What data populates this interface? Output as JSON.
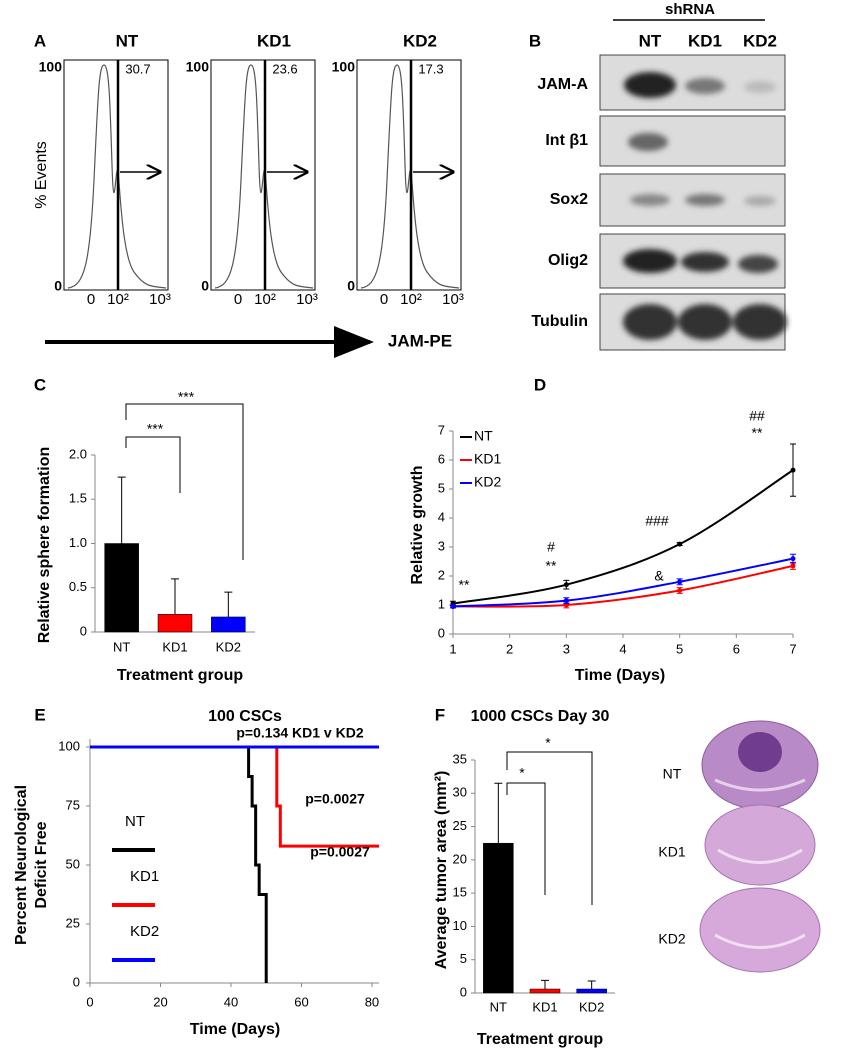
{
  "flow": {
    "panel": "A",
    "y_axis_label": "% Events",
    "x_axis_label": "JAM-PE",
    "yticks": [
      0,
      100
    ],
    "xticks": [
      "0",
      "10²",
      "10³"
    ],
    "samples": [
      {
        "name": "NT",
        "percent": 30.7
      },
      {
        "name": "KD1",
        "percent": 23.6
      },
      {
        "name": "KD2",
        "percent": 17.3
      }
    ]
  },
  "blot": {
    "panel": "B",
    "header": "shRNA",
    "lanes": [
      "NT",
      "KD1",
      "KD2"
    ],
    "proteins": [
      "JAM-A",
      "Int β1",
      "Sox2",
      "Olig2",
      "Tubulin"
    ]
  },
  "chart_data": [
    {
      "type": "bar",
      "panel": "C",
      "y_label": "Relative sphere formation",
      "x_label": "Treatment group",
      "categories": [
        "NT",
        "KD1",
        "KD2"
      ],
      "values": [
        1.0,
        0.2,
        0.17
      ],
      "errors": [
        0.75,
        0.4,
        0.28
      ],
      "colors": [
        "#000000",
        "#ff0000",
        "#0000ff"
      ],
      "ylim": [
        0,
        2
      ],
      "yticks": [
        0,
        0.5,
        {
          "value": 1,
          "label": "1.0"
        },
        1.5,
        {
          "value": 2,
          "label": "2.0"
        }
      ],
      "annotations": [
        "***",
        "***"
      ]
    },
    {
      "type": "line",
      "panel": "D",
      "y_label": "Relative growth",
      "x_label": "Time (Days)",
      "x": [
        1,
        3,
        5,
        7
      ],
      "xlim": [
        1,
        7
      ],
      "xticks": [
        1,
        2,
        3,
        4,
        5,
        6,
        7
      ],
      "ylim": [
        0,
        7
      ],
      "yticks": [
        0,
        1,
        2,
        3,
        4,
        5,
        6,
        7
      ],
      "series": [
        {
          "name": "NT",
          "color": "#000000",
          "values": [
            1.05,
            1.7,
            3.1,
            5.65
          ],
          "errors": [
            0.08,
            0.15,
            0.05,
            0.9
          ]
        },
        {
          "name": "KD1",
          "color": "#ff0000",
          "values": [
            0.95,
            1.0,
            1.5,
            2.35
          ],
          "errors": [
            0.05,
            0.1,
            0.1,
            0.12
          ]
        },
        {
          "name": "KD2",
          "color": "#0000ff",
          "values": [
            0.95,
            1.15,
            1.8,
            2.6
          ],
          "errors": [
            0.05,
            0.1,
            0.1,
            0.15
          ]
        }
      ],
      "annotations": [
        "**",
        "#",
        "**",
        "###",
        "&",
        "##",
        "**"
      ]
    },
    {
      "type": "survival",
      "panel": "E",
      "title": "100 CSCs",
      "y_label": [
        "Percent Neurological",
        "Deficit Free"
      ],
      "x_label": "Time (Days)",
      "xlim": [
        0,
        82
      ],
      "xticks": [
        0,
        20,
        40,
        60,
        80
      ],
      "ylim": [
        0,
        100
      ],
      "yticks": [
        0,
        25,
        50,
        75,
        100
      ],
      "series": [
        {
          "name": "NT",
          "color": "#000000",
          "x": [
            0,
            45,
            46,
            47,
            48,
            50
          ],
          "values": [
            100,
            87.5,
            75,
            50,
            37.5,
            0
          ]
        },
        {
          "name": "KD1",
          "color": "#ff0000",
          "x": [
            0,
            53,
            54,
            82
          ],
          "values": [
            100,
            75,
            58,
            58
          ]
        },
        {
          "name": "KD2",
          "color": "#0000ff",
          "x": [
            0,
            82
          ],
          "values": [
            100,
            100
          ]
        }
      ],
      "annotations": [
        "p=0.134 KD1 v KD2",
        "p=0.0027",
        "p=0.0027"
      ]
    },
    {
      "type": "bar",
      "panel": "F",
      "title": "1000 CSCs Day 30",
      "y_label": "Average tumor area (mm²)",
      "x_label": "Treatment group",
      "categories": [
        "NT",
        "KD1",
        "KD2"
      ],
      "values": [
        22.5,
        0.6,
        0.6
      ],
      "errors": [
        9,
        1.3,
        1.2
      ],
      "colors": [
        "#000000",
        "#ff0000",
        "#0000ff"
      ],
      "ylim": [
        0,
        35
      ],
      "yticks": [
        0,
        5,
        10,
        15,
        20,
        25,
        30,
        35
      ],
      "annotations": [
        "*",
        "*"
      ]
    }
  ]
}
